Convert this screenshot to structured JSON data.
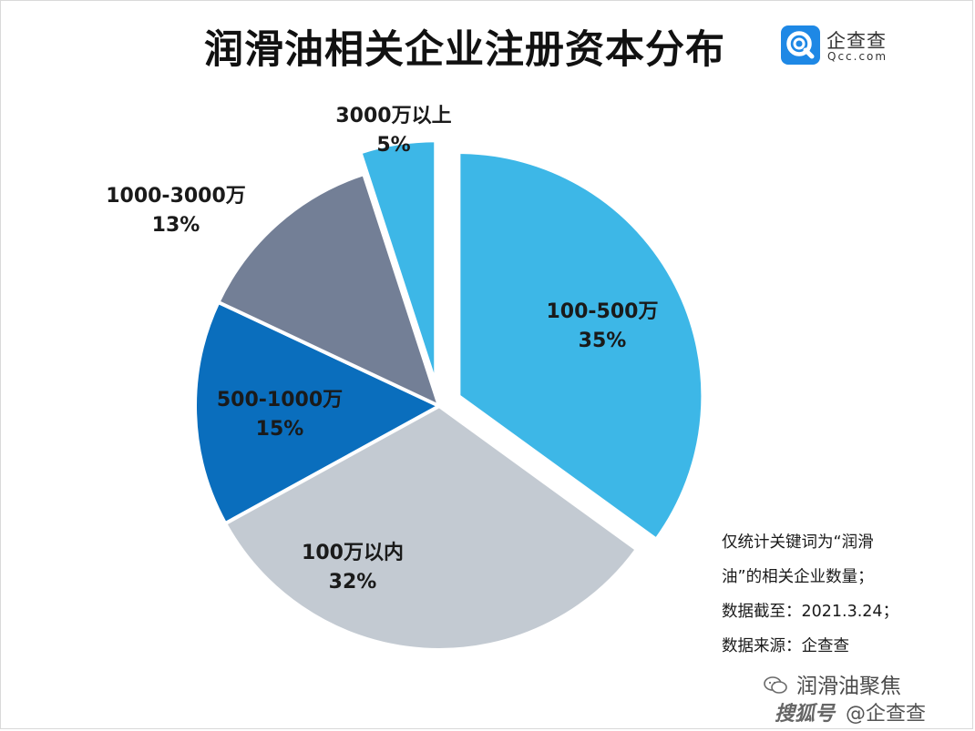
{
  "header": {
    "title": "润滑油相关企业注册资本分布",
    "logo": {
      "name": "企查查",
      "domain": "Qcc.com",
      "icon": "qcc-logo-icon",
      "badge_color": "#1e88e5"
    }
  },
  "chart_data": {
    "type": "pie",
    "title": "润滑油相关企业注册资本分布",
    "start_angle_deg": 0,
    "direction": "clockwise",
    "exploded": [
      "100-500万",
      "3000万以上"
    ],
    "slices": [
      {
        "label": "100-500万",
        "value": 35,
        "display": "35%",
        "color": "#3db7e7"
      },
      {
        "label": "100万以内",
        "value": 32,
        "display": "32%",
        "color": "#c3cad2"
      },
      {
        "label": "500-1000万",
        "value": 15,
        "display": "15%",
        "color": "#0a6ebd"
      },
      {
        "label": "1000-3000万",
        "value": 13,
        "display": "13%",
        "color": "#737f96"
      },
      {
        "label": "3000万以上",
        "value": 5,
        "display": "5%",
        "color": "#3db7e7"
      }
    ]
  },
  "notes": {
    "line1": "仅统计关键词为“润滑",
    "line2": "油”的相关企业数量；",
    "line3": "数据截至：2021.3.24；",
    "line4": "数据来源：企查查"
  },
  "watermark": {
    "account": "润滑油聚焦",
    "platform": "搜狐号",
    "handle": "@企查查",
    "icon": "wechat-icon"
  }
}
